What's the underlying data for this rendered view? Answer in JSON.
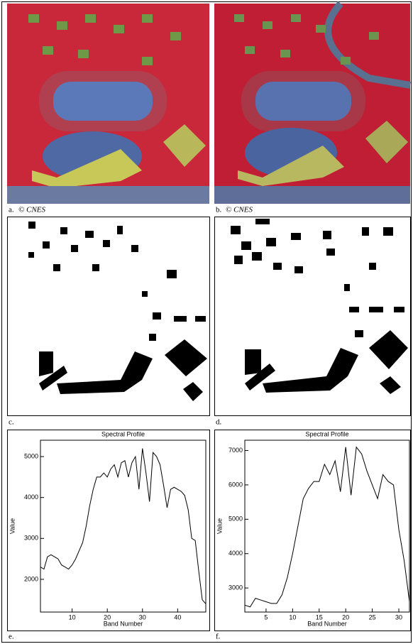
{
  "captions": [
    {
      "letter": "a.",
      "credit": "© CNES"
    },
    {
      "letter": "b.",
      "credit": "© CNES"
    },
    {
      "letter": "c."
    },
    {
      "letter": "d."
    },
    {
      "letter": "e."
    },
    {
      "letter": "f."
    }
  ],
  "chart_data": [
    {
      "type": "line",
      "title": "Spectral Profile",
      "x_label": "Band Number",
      "y_label": "Value",
      "x": [
        1,
        2,
        3,
        4,
        5,
        6,
        7,
        8,
        9,
        10,
        11,
        12,
        13,
        14,
        15,
        16,
        17,
        18,
        19,
        20,
        21,
        22,
        23,
        24,
        25,
        26,
        27,
        28,
        29,
        30,
        31,
        32,
        33,
        34,
        35,
        36,
        37,
        38,
        39,
        40,
        41,
        42,
        43,
        44,
        45,
        46,
        47,
        48
      ],
      "series": [
        {
          "color": "#000000",
          "values": [
            2300,
            2250,
            2550,
            2600,
            2550,
            2500,
            2350,
            2300,
            2250,
            2350,
            2500,
            2700,
            2900,
            3300,
            3800,
            4200,
            4500,
            4500,
            4600,
            4500,
            4700,
            4800,
            4500,
            4850,
            4900,
            4500,
            4850,
            5000,
            4200,
            5200,
            4600,
            3900,
            5100,
            5000,
            4800,
            4300,
            3750,
            4200,
            4250,
            4200,
            4150,
            4050,
            3700,
            3000,
            2950,
            2200,
            1500,
            1400
          ]
        }
      ],
      "xlim": [
        1,
        48
      ],
      "xticks": [
        10,
        20,
        30,
        40
      ],
      "ylim": [
        1200,
        5400
      ],
      "yticks": [
        2000,
        3000,
        4000,
        5000
      ]
    },
    {
      "type": "line",
      "title": "Spectral Profile",
      "x_label": "Band Number",
      "y_label": "Value",
      "x": [
        1,
        2,
        3,
        4,
        5,
        6,
        7,
        8,
        9,
        10,
        11,
        12,
        13,
        14,
        15,
        16,
        17,
        18,
        19,
        20,
        21,
        22,
        23,
        24,
        25,
        26,
        27,
        28,
        29,
        30,
        31,
        32
      ],
      "series": [
        {
          "color": "#000000",
          "values": [
            2500,
            2450,
            2700,
            2650,
            2600,
            2550,
            2550,
            2800,
            3300,
            4000,
            4800,
            5600,
            5900,
            6100,
            6100,
            6600,
            6300,
            6700,
            5800,
            7100,
            5700,
            7100,
            6900,
            6400,
            6000,
            5600,
            6300,
            6100,
            6000,
            4700,
            3800,
            2600
          ]
        }
      ],
      "xlim": [
        1,
        32
      ],
      "xticks": [
        5,
        10,
        15,
        20,
        25,
        30
      ],
      "ylim": [
        2300,
        7300
      ],
      "yticks": [
        3000,
        4000,
        5000,
        6000,
        7000
      ]
    }
  ]
}
